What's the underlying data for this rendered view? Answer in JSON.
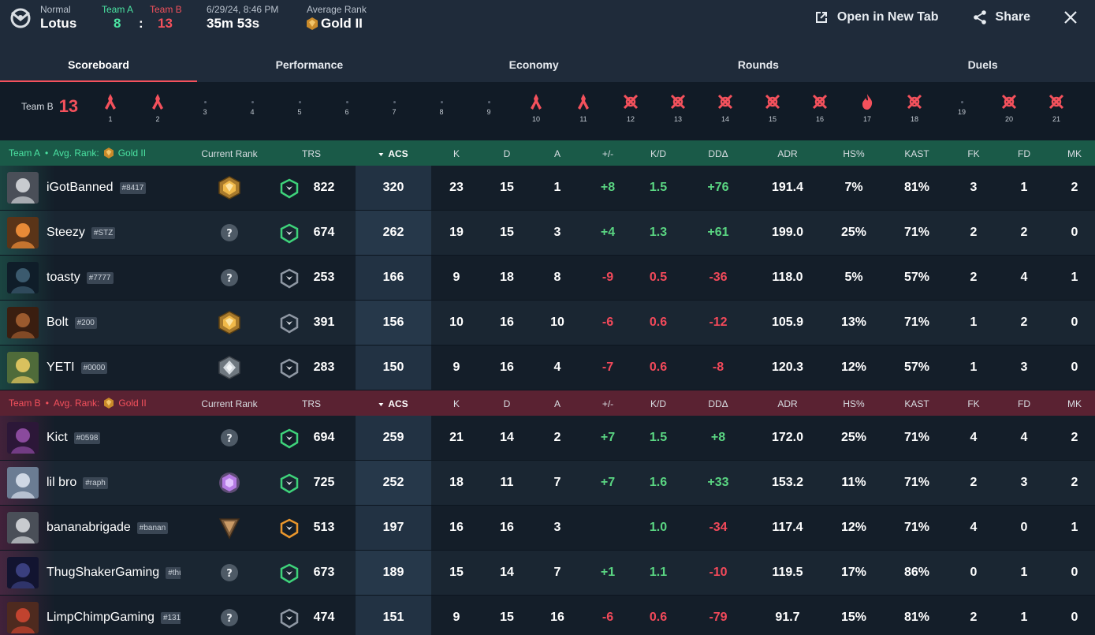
{
  "header": {
    "mode": "Normal",
    "map": "Lotus",
    "team_a_label": "Team A",
    "team_a_score": "8",
    "score_sep": ":",
    "team_b_label": "Team B",
    "team_b_score": "13",
    "date": "6/29/24, 8:46 PM",
    "duration": "35m 53s",
    "avg_rank_label": "Average Rank",
    "avg_rank": "Gold II",
    "open_new_tab": "Open in New Tab",
    "share": "Share"
  },
  "tabs": [
    "Scoreboard",
    "Performance",
    "Economy",
    "Rounds",
    "Duels"
  ],
  "timeline": {
    "team_label": "Team B",
    "team_score": "13",
    "rounds": [
      {
        "n": "1",
        "icon": "elim"
      },
      {
        "n": "2",
        "icon": "elim"
      },
      {
        "n": "3",
        "icon": "none"
      },
      {
        "n": "4",
        "icon": "none"
      },
      {
        "n": "5",
        "icon": "none"
      },
      {
        "n": "6",
        "icon": "none"
      },
      {
        "n": "7",
        "icon": "none"
      },
      {
        "n": "8",
        "icon": "none"
      },
      {
        "n": "9",
        "icon": "none"
      },
      {
        "n": "10",
        "icon": "elim"
      },
      {
        "n": "11",
        "icon": "elim"
      },
      {
        "n": "12",
        "icon": "defuse"
      },
      {
        "n": "13",
        "icon": "defuse"
      },
      {
        "n": "14",
        "icon": "defuse"
      },
      {
        "n": "15",
        "icon": "defuse"
      },
      {
        "n": "16",
        "icon": "defuse"
      },
      {
        "n": "17",
        "icon": "detonate"
      },
      {
        "n": "18",
        "icon": "defuse"
      },
      {
        "n": "19",
        "icon": "none"
      },
      {
        "n": "20",
        "icon": "defuse"
      },
      {
        "n": "21",
        "icon": "defuse"
      }
    ]
  },
  "columns": [
    "Current Rank",
    "TRS",
    "ACS",
    "K",
    "D",
    "A",
    "+/-",
    "K/D",
    "DDΔ",
    "ADR",
    "HS%",
    "KAST",
    "FK",
    "FD",
    "MK"
  ],
  "team_a": {
    "label": "Team A",
    "avg_rank_label": "Avg. Rank:",
    "avg_rank": "Gold II",
    "bullet": "•",
    "players": [
      {
        "name": "iGotBanned",
        "tag": "#8417",
        "rank": "gold",
        "trs_icon": "green",
        "trs": "822",
        "acs": "320",
        "k": "23",
        "d": "15",
        "a": "1",
        "pm": "+8",
        "kd": "1.5",
        "dd": "+76",
        "adr": "191.4",
        "hs": "7%",
        "kast": "81%",
        "fk": "3",
        "fd": "1",
        "mk": "2",
        "agent": "cowboy"
      },
      {
        "name": "Steezy",
        "tag": "#STZ",
        "rank": "unknown",
        "trs_icon": "green",
        "trs": "674",
        "acs": "262",
        "k": "19",
        "d": "15",
        "a": "3",
        "pm": "+4",
        "kd": "1.3",
        "dd": "+61",
        "adr": "199.0",
        "hs": "25%",
        "kast": "71%",
        "fk": "2",
        "fd": "2",
        "mk": "0",
        "agent": "orange"
      },
      {
        "name": "toasty",
        "tag": "#7777",
        "rank": "unknown",
        "trs_icon": "grey",
        "trs": "253",
        "acs": "166",
        "k": "9",
        "d": "18",
        "a": "8",
        "pm": "-9",
        "kd": "0.5",
        "dd": "-36",
        "adr": "118.0",
        "hs": "5%",
        "kast": "57%",
        "fk": "2",
        "fd": "4",
        "mk": "1",
        "agent": "teal"
      },
      {
        "name": "Bolt",
        "tag": "#200",
        "rank": "gold",
        "trs_icon": "grey",
        "trs": "391",
        "acs": "156",
        "k": "10",
        "d": "16",
        "a": "10",
        "pm": "-6",
        "kd": "0.6",
        "dd": "-12",
        "adr": "105.9",
        "hs": "13%",
        "kast": "71%",
        "fk": "1",
        "fd": "2",
        "mk": "0",
        "agent": "brown"
      },
      {
        "name": "YETI",
        "tag": "#0000",
        "rank": "silver",
        "trs_icon": "grey",
        "trs": "283",
        "acs": "150",
        "k": "9",
        "d": "16",
        "a": "4",
        "pm": "-7",
        "kd": "0.6",
        "dd": "-8",
        "adr": "120.3",
        "hs": "12%",
        "kast": "57%",
        "fk": "1",
        "fd": "3",
        "mk": "0",
        "agent": "blonde"
      }
    ]
  },
  "team_b": {
    "label": "Team B",
    "avg_rank_label": "Avg. Rank:",
    "avg_rank": "Gold II",
    "bullet": "•",
    "players": [
      {
        "name": "Kict",
        "tag": "#0598",
        "rank": "unknown",
        "trs_icon": "green",
        "trs": "694",
        "acs": "259",
        "k": "21",
        "d": "14",
        "a": "2",
        "pm": "+7",
        "kd": "1.5",
        "dd": "+8",
        "adr": "172.0",
        "hs": "25%",
        "kast": "71%",
        "fk": "4",
        "fd": "4",
        "mk": "2",
        "agent": "purple"
      },
      {
        "name": "lil bro",
        "tag": "#raph",
        "rank": "amethyst",
        "trs_icon": "green",
        "trs": "725",
        "acs": "252",
        "k": "18",
        "d": "11",
        "a": "7",
        "pm": "+7",
        "kd": "1.6",
        "dd": "+33",
        "adr": "153.2",
        "hs": "11%",
        "kast": "71%",
        "fk": "2",
        "fd": "3",
        "mk": "2",
        "agent": "white"
      },
      {
        "name": "bananabrigade",
        "tag": "#banan",
        "rank": "bronze",
        "trs_icon": "orange",
        "trs": "513",
        "acs": "197",
        "k": "16",
        "d": "16",
        "a": "3",
        "pm": "",
        "kd": "1.0",
        "dd": "-34",
        "adr": "117.4",
        "hs": "12%",
        "kast": "71%",
        "fk": "4",
        "fd": "0",
        "mk": "1",
        "agent": "cowboy"
      },
      {
        "name": "ThugShakerGaming",
        "tag": "#thu",
        "rank": "unknown",
        "trs_icon": "green",
        "trs": "673",
        "acs": "189",
        "k": "15",
        "d": "14",
        "a": "7",
        "pm": "+1",
        "kd": "1.1",
        "dd": "-10",
        "adr": "119.5",
        "hs": "17%",
        "kast": "86%",
        "fk": "0",
        "fd": "1",
        "mk": "0",
        "agent": "hood"
      },
      {
        "name": "LimpChimpGaming",
        "tag": "#131",
        "rank": "unknown",
        "trs_icon": "grey",
        "trs": "474",
        "acs": "151",
        "k": "9",
        "d": "15",
        "a": "16",
        "pm": "-6",
        "kd": "0.6",
        "dd": "-79",
        "adr": "91.7",
        "hs": "15%",
        "kast": "81%",
        "fk": "2",
        "fd": "1",
        "mk": "0",
        "agent": "red"
      }
    ]
  },
  "colors": {
    "team_a": "#4be3a2",
    "team_b": "#f4515c",
    "positive": "#5ad582",
    "negative": "#f2495a"
  }
}
